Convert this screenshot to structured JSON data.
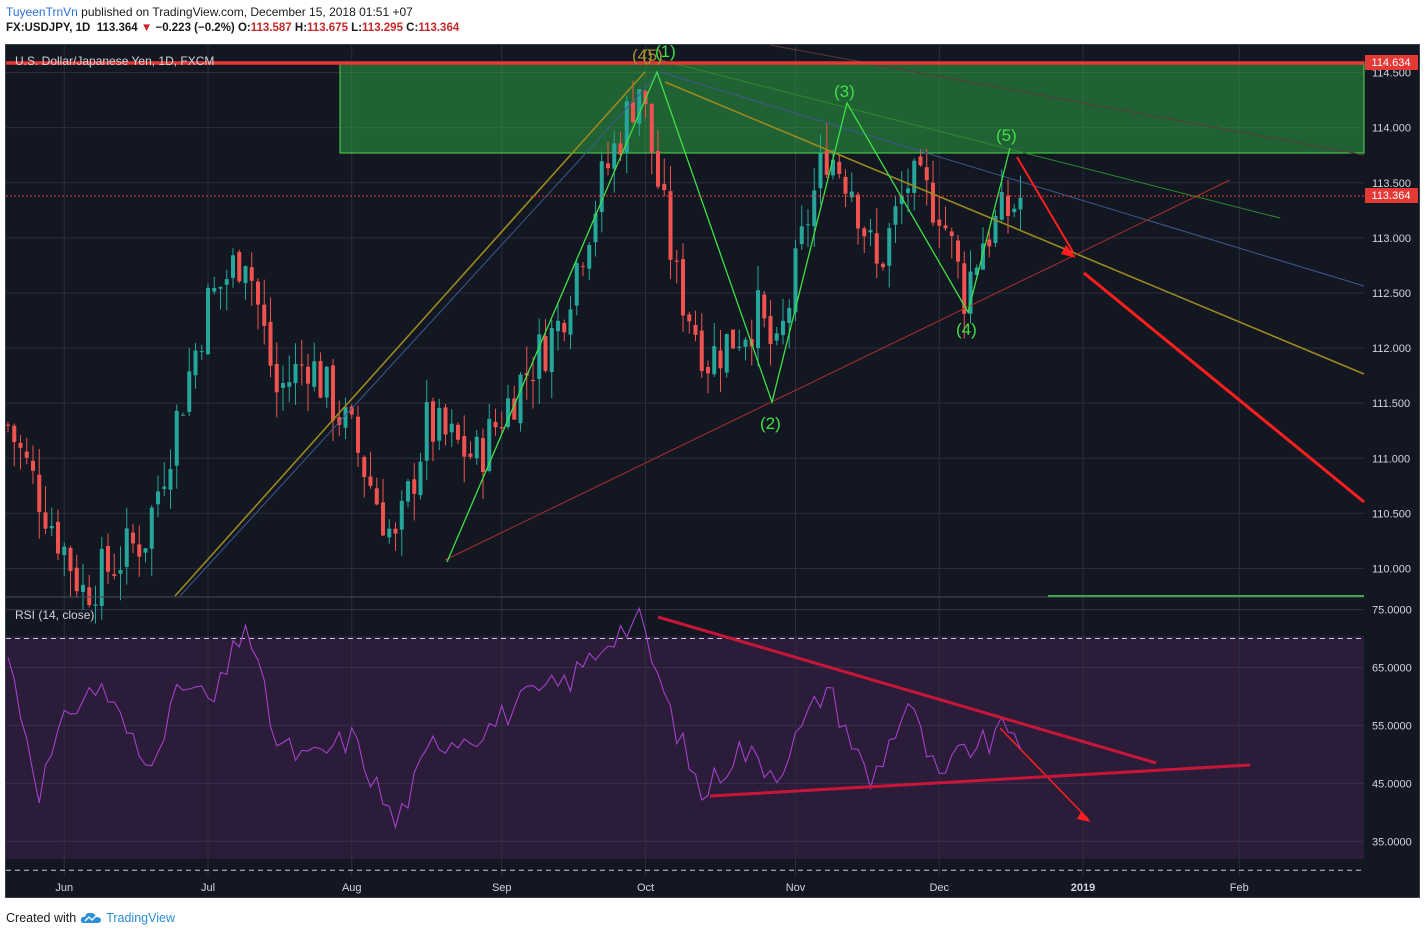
{
  "header": {
    "author": "TuyeenTrnVn",
    "published": " published on TradingView.com, December 15, 2018 01:51 +07",
    "symbol": "FX:USDJPY, 1D",
    "last": "113.364",
    "change": "−0.223 (−0.2%)",
    "o_label": "O:",
    "o": "113.587",
    "h_label": "H:",
    "h": "113.675",
    "l_label": "L:",
    "l": "113.295",
    "c_label": "C:",
    "c": "113.364"
  },
  "main_pane": {
    "title": "U.S. Dollar/Japanese Yen, 1D, FXCM",
    "price_badges": [
      {
        "value": "114.634",
        "color": "#e53935"
      },
      {
        "value": "113.364",
        "color": "#e53935"
      }
    ]
  },
  "rsi_pane": {
    "title": "RSI (14, close)"
  },
  "wave_labels": [
    "(4)",
    "(5)",
    "(1)",
    "(3)",
    "(5)",
    "(2)",
    "(4)"
  ],
  "footer": {
    "created_with": "Created with",
    "brand": "TradingView"
  },
  "colors": {
    "background": "#131722",
    "grid": "#2a2e39",
    "up_candle": "#26a69a",
    "down_candle": "#ef5350",
    "wave_line": "#3ee047",
    "resistance": "#e53935",
    "rsi_line": "#a340c9",
    "rsi_fill": "#2b1d3a"
  },
  "chart_data": [
    {
      "type": "candlestick",
      "title": "U.S. Dollar/Japanese Yen, 1D, FXCM",
      "x_ticks": [
        "Jun",
        "Jul",
        "Aug",
        "Sep",
        "Oct",
        "Nov",
        "Dec",
        "2019",
        "Feb"
      ],
      "y_ticks": [
        110.0,
        110.5,
        111.0,
        111.5,
        112.0,
        112.5,
        113.0,
        113.5,
        114.0,
        114.5
      ],
      "ylim": [
        109.75,
        114.75
      ],
      "last_price": 113.364,
      "resistance_level": 114.634,
      "supply_zone": [
        113.78,
        114.65
      ],
      "anchors": [
        {
          "day": 0,
          "price": 111.3
        },
        {
          "day": 12,
          "price": 109.8
        },
        {
          "day": 22,
          "price": 110.3
        },
        {
          "day": 32,
          "price": 112.4
        },
        {
          "day": 38,
          "price": 112.9
        },
        {
          "day": 43,
          "price": 111.6
        },
        {
          "day": 48,
          "price": 111.9
        },
        {
          "day": 55,
          "price": 111.2
        },
        {
          "day": 62,
          "price": 110.2
        },
        {
          "day": 67,
          "price": 111.3
        },
        {
          "day": 75,
          "price": 111.0
        },
        {
          "day": 82,
          "price": 111.7
        },
        {
          "day": 88,
          "price": 112.2
        },
        {
          "day": 95,
          "price": 113.5
        },
        {
          "day": 101,
          "price": 114.4
        },
        {
          "day": 107,
          "price": 112.6
        },
        {
          "day": 112,
          "price": 111.9
        },
        {
          "day": 120,
          "price": 112.3
        },
        {
          "day": 123,
          "price": 111.9
        },
        {
          "day": 128,
          "price": 113.2
        },
        {
          "day": 131,
          "price": 113.8
        },
        {
          "day": 135,
          "price": 113.5
        },
        {
          "day": 139,
          "price": 112.7
        },
        {
          "day": 144,
          "price": 113.5
        },
        {
          "day": 149,
          "price": 113.3
        },
        {
          "day": 153,
          "price": 112.5
        },
        {
          "day": 156,
          "price": 113.0
        },
        {
          "day": 162,
          "price": 113.36
        }
      ]
    },
    {
      "type": "line",
      "title": "RSI (14, close)",
      "y_ticks": [
        35.0,
        45.0,
        55.0,
        65.0,
        75.0
      ],
      "bands": [
        30,
        70
      ],
      "ylim": [
        29,
        77
      ],
      "anchors": [
        {
          "day": 0,
          "value": 67
        },
        {
          "day": 5,
          "value": 44
        },
        {
          "day": 10,
          "value": 58
        },
        {
          "day": 15,
          "value": 62
        },
        {
          "day": 22,
          "value": 48
        },
        {
          "day": 28,
          "value": 62
        },
        {
          "day": 33,
          "value": 59
        },
        {
          "day": 38,
          "value": 73
        },
        {
          "day": 43,
          "value": 52
        },
        {
          "day": 48,
          "value": 49
        },
        {
          "day": 55,
          "value": 53
        },
        {
          "day": 62,
          "value": 38
        },
        {
          "day": 68,
          "value": 52
        },
        {
          "day": 76,
          "value": 54
        },
        {
          "day": 82,
          "value": 59
        },
        {
          "day": 90,
          "value": 63
        },
        {
          "day": 97,
          "value": 71
        },
        {
          "day": 101,
          "value": 73
        },
        {
          "day": 106,
          "value": 57
        },
        {
          "day": 111,
          "value": 43
        },
        {
          "day": 117,
          "value": 51
        },
        {
          "day": 123,
          "value": 47
        },
        {
          "day": 131,
          "value": 62
        },
        {
          "day": 138,
          "value": 45
        },
        {
          "day": 144,
          "value": 59
        },
        {
          "day": 149,
          "value": 45
        },
        {
          "day": 153,
          "value": 51
        },
        {
          "day": 157,
          "value": 52
        },
        {
          "day": 160,
          "value": 55
        },
        {
          "day": 162,
          "value": 53
        }
      ]
    }
  ]
}
